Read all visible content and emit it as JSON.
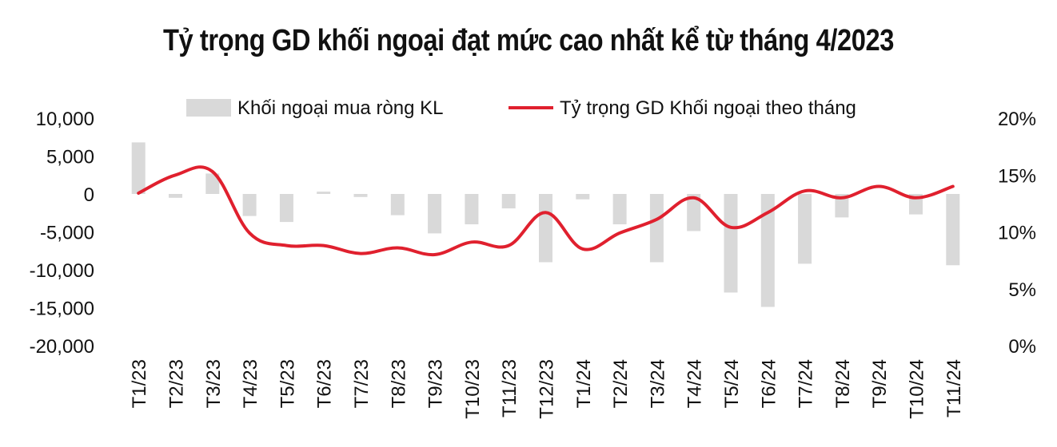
{
  "chart_data": {
    "type": "bar+line",
    "title": "Tỷ trọng GD khối ngoại đạt mức cao nhất kể từ tháng 4/2023",
    "categories": [
      "T1/23",
      "T2/23",
      "T3/23",
      "T4/23",
      "T5/23",
      "T6/23",
      "T7/23",
      "T8/23",
      "T9/23",
      "T10/23",
      "T11/23",
      "T12/23",
      "T1/24",
      "T2/24",
      "T3/24",
      "T4/24",
      "T5/24",
      "T6/24",
      "T7/24",
      "T8/24",
      "T9/24",
      "T10/24",
      "T11/24"
    ],
    "series": [
      {
        "name": "Khối ngoại mua ròng KL",
        "type": "bar",
        "axis": "left",
        "color": "#d9d9d9",
        "values": [
          6800,
          -500,
          2700,
          -2900,
          -3700,
          300,
          -400,
          -2800,
          -5200,
          -4000,
          -1900,
          -9000,
          -700,
          -4000,
          -9000,
          -4900,
          -13000,
          -14900,
          -9200,
          -3100,
          0,
          -2700,
          -9400
        ]
      },
      {
        "name": "Tỷ trọng GD Khối ngoại theo tháng",
        "type": "line",
        "axis": "right",
        "color": "#e0202e",
        "values": [
          13.4,
          15.0,
          15.3,
          9.9,
          8.8,
          8.8,
          8.1,
          8.6,
          8.0,
          9.1,
          8.8,
          11.7,
          8.5,
          9.9,
          11.1,
          13.0,
          10.4,
          11.7,
          13.6,
          13.0,
          14.0,
          13.0,
          14.0
        ]
      }
    ],
    "y_left": {
      "min": -20000,
      "max": 10000,
      "ticks": [
        "10,000",
        "5,000",
        "0",
        "-5,000",
        "-10,000",
        "-15,000",
        "-20,000"
      ],
      "tick_values": [
        10000,
        5000,
        0,
        -5000,
        -10000,
        -15000,
        -20000
      ]
    },
    "y_right": {
      "min": 0,
      "max": 20,
      "ticks": [
        "20%",
        "15%",
        "10%",
        "5%",
        "0%"
      ],
      "tick_values": [
        20,
        15,
        10,
        5,
        0
      ]
    },
    "legend": "top",
    "grid": false
  }
}
